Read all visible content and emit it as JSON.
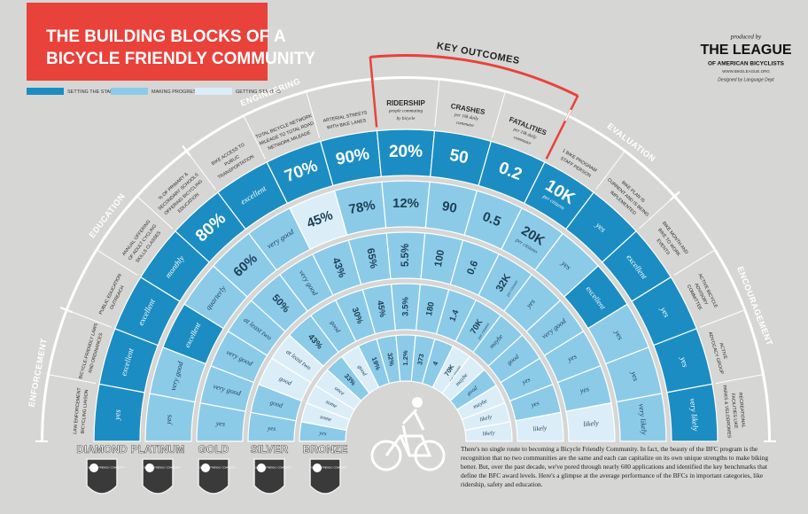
{
  "title_lines": [
    "THE BUILDING BLOCKS OF A",
    "BICYCLE FRIENDLY COMMUNITY"
  ],
  "legend": [
    {
      "label": "SETTING THE STANDARD",
      "color": "#1b8dc3"
    },
    {
      "label": "MAKING PROGRESS",
      "color": "#8ccbe8"
    },
    {
      "label": "GETTING STARTED",
      "color": "#dbeef8"
    }
  ],
  "publisher": {
    "produced_by": "produced by",
    "name": "THE LEAGUE",
    "subname": "OF AMERICAN BICYCLISTS",
    "url": "WWW.BIKELEAGUE.ORG",
    "designer": "Designed by Language Dept"
  },
  "sections": [
    {
      "name": "ENFORCEMENT",
      "columns": [
        {
          "header": [
            "LAW ENFORCEMENT",
            "BICYCLING LIAISON"
          ],
          "values": [
            "yes",
            "yes",
            "yes",
            "yes",
            "yes"
          ],
          "levels": [
            0,
            1,
            1,
            1,
            1
          ]
        },
        {
          "header": [
            "BICYCLE-FRIENDLY LAWS",
            "AND ORDINANCES"
          ],
          "values": [
            "excellent",
            "very good",
            "very good",
            "good",
            "some"
          ],
          "levels": [
            0,
            1,
            1,
            1,
            2
          ]
        }
      ]
    },
    {
      "name": "EDUCATION",
      "columns": [
        {
          "header": [
            "PUBLIC EDUCATION",
            "OUTREACH"
          ],
          "values": [
            "excellent",
            "excellent",
            "very good",
            "good",
            "some"
          ],
          "levels": [
            0,
            0,
            1,
            2,
            2
          ]
        },
        {
          "header": [
            "ANNUAL OFFERING",
            "OF ADULT CYCLING",
            "SKILLS CLASSES"
          ],
          "values": [
            "monthly",
            "quarterly",
            "at least two",
            "at least two",
            "once"
          ],
          "levels": [
            0,
            1,
            1,
            2,
            2
          ]
        },
        {
          "header": [
            "% OF PRIMARY &",
            "SECONDARY SCHOOLS",
            "OFFERING BICYCLING",
            "EDUCATION"
          ],
          "values": [
            "80%",
            "60%",
            "50%",
            "43%",
            "33%"
          ],
          "levels": [
            0,
            1,
            1,
            1,
            1
          ]
        }
      ]
    },
    {
      "name": "ENGINEERING",
      "columns": [
        {
          "header": [
            "BIKE ACCESS TO",
            "PUBLIC",
            "TRANSPORTATION"
          ],
          "values": [
            "excellent",
            "very good",
            "very good",
            "good",
            "good"
          ],
          "levels": [
            0,
            1,
            1,
            1,
            2
          ]
        },
        {
          "header": [
            "TOTAL BICYCLE NETWORK",
            "MILEAGE TO TOTAL ROAD",
            "NETWORK MILEAGE"
          ],
          "values": [
            "70%",
            "45%",
            "43%",
            "30%",
            "19%"
          ],
          "levels": [
            0,
            2,
            1,
            1,
            1
          ]
        },
        {
          "header": [
            "ARTERIAL STREETS",
            "WITH BIKE LANES"
          ],
          "values": [
            "90%",
            "78%",
            "65%",
            "45%",
            "32%"
          ],
          "levels": [
            0,
            1,
            1,
            1,
            1
          ]
        }
      ]
    },
    {
      "name": "KEY OUTCOMES",
      "columns": [
        {
          "header": [
            "RIDERSHIP",
            "people commuting",
            "by bicycle"
          ],
          "values": [
            "20%",
            "12%",
            "5.5%",
            "3.5%",
            "1.2%"
          ],
          "levels": [
            0,
            1,
            1,
            1,
            1
          ]
        },
        {
          "header": [
            "CRASHES",
            "per 10k daily",
            "commuter"
          ],
          "values": [
            "50",
            "90",
            "100",
            "180",
            "373"
          ],
          "levels": [
            0,
            1,
            1,
            1,
            1
          ]
        },
        {
          "header": [
            "FATALITIES",
            "per 10k daily",
            "commuter"
          ],
          "values": [
            "0.2",
            "0.5",
            "0.6",
            "1.4",
            "4"
          ],
          "levels": [
            0,
            1,
            1,
            1,
            1
          ]
        }
      ]
    },
    {
      "name": "EVALUATION",
      "columns": [
        {
          "header": [
            "1 BIKE PROGRAM",
            "STAFF PERSON"
          ],
          "values": [
            "10K",
            "20K",
            "32K",
            "70K",
            "70K"
          ],
          "unit": "per citizens",
          "levels": [
            0,
            1,
            1,
            1,
            2
          ]
        },
        {
          "header": [
            "BIKE PLAN IS",
            "CURRENT AND IS BEING",
            "IMPLEMENTED"
          ],
          "values": [
            "yes",
            "yes",
            "yes",
            "maybe",
            "maybe"
          ],
          "levels": [
            0,
            1,
            1,
            1,
            2
          ]
        }
      ]
    },
    {
      "name": "ENCOURAGEMENT",
      "columns": [
        {
          "header": [
            "BIKE MONTH AND",
            "BIKE TO WORK",
            "EVENTS"
          ],
          "values": [
            "excellent",
            "excellent",
            "very good",
            "good",
            "good"
          ],
          "levels": [
            0,
            0,
            1,
            1,
            1
          ]
        },
        {
          "header": [
            "ACTIVE BICYCLE",
            "ADVISORY",
            "COMMITTEE"
          ],
          "values": [
            "yes",
            "yes",
            "yes",
            "yes",
            "maybe"
          ],
          "levels": [
            0,
            1,
            1,
            1,
            2
          ]
        },
        {
          "header": [
            "ACTIVE",
            "ADVOCACY GROUP"
          ],
          "values": [
            "yes",
            "yes",
            "yes",
            "yes",
            "likely"
          ],
          "levels": [
            0,
            1,
            1,
            1,
            2
          ]
        },
        {
          "header": [
            "RECREATIONAL",
            "FACILITIES LIKE",
            "PARKS & VELODROMES"
          ],
          "values": [
            "very likely",
            "very likely",
            "likely",
            "likely",
            "likely"
          ],
          "levels": [
            0,
            1,
            2,
            2,
            2
          ]
        }
      ]
    }
  ],
  "award_levels": [
    "DIAMOND",
    "PLATINUM",
    "GOLD",
    "SILVER",
    "BRONZE"
  ],
  "badge_text": "BICYCLE FRIENDLY COMMUNITY",
  "description": "There's no single route to becoming a Bicycle Friendly Community. In fact, the beauty of the BFC program is the recognition that no two communities are the same and each can capitalize on its own unique strengths to make biking better. But, over the past decade, we've pored through nearly 600 applications and identified the key benchmarks that define the BFC award levels. Here's a glimpse at the average performance of the BFCs in important categories, like ridership, safety and education."
}
